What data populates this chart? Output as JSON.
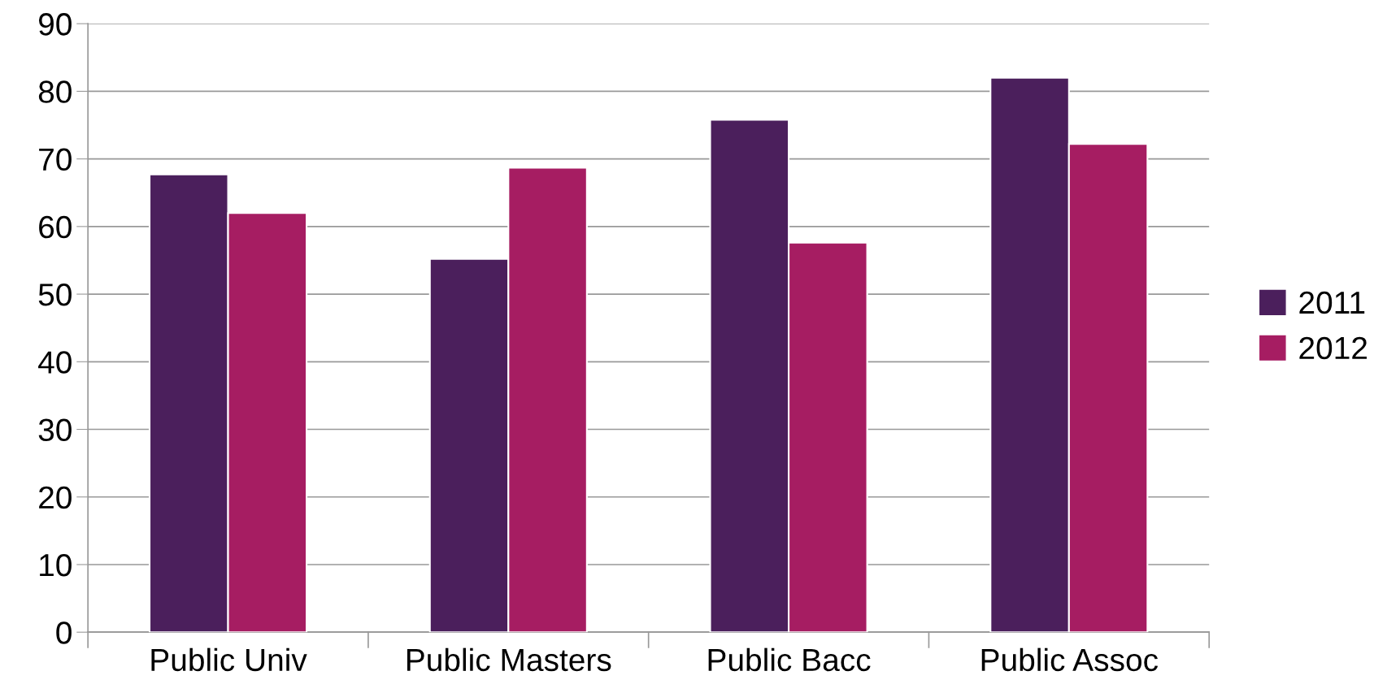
{
  "chart_data": {
    "type": "bar",
    "categories": [
      "Public Univ",
      "Public Masters",
      "Public Bacc",
      "Public Assoc"
    ],
    "series": [
      {
        "name": "2011",
        "color": "#4b1f5c",
        "values": [
          67.7,
          55.2,
          75.8,
          82.0
        ]
      },
      {
        "name": "2012",
        "color": "#a61d62",
        "values": [
          62.0,
          68.7,
          57.6,
          72.2
        ]
      }
    ],
    "ylim": [
      0,
      90
    ],
    "yticks": [
      0,
      10,
      20,
      30,
      40,
      50,
      60,
      70,
      80,
      90
    ],
    "grid": "y",
    "legend": "right"
  }
}
